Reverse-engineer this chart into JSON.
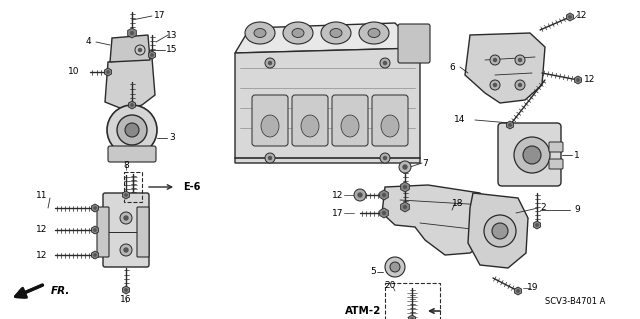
{
  "background_color": "#ffffff",
  "line_color": "#2a2a2a",
  "text_color": "#000000",
  "fig_width": 6.4,
  "fig_height": 3.19,
  "dpi": 100,
  "diagram_ref": "SCV3-B4701 A",
  "gray_fill": "#c8c8c8",
  "light_gray": "#e8e8e8",
  "mid_gray": "#b0b0b0"
}
